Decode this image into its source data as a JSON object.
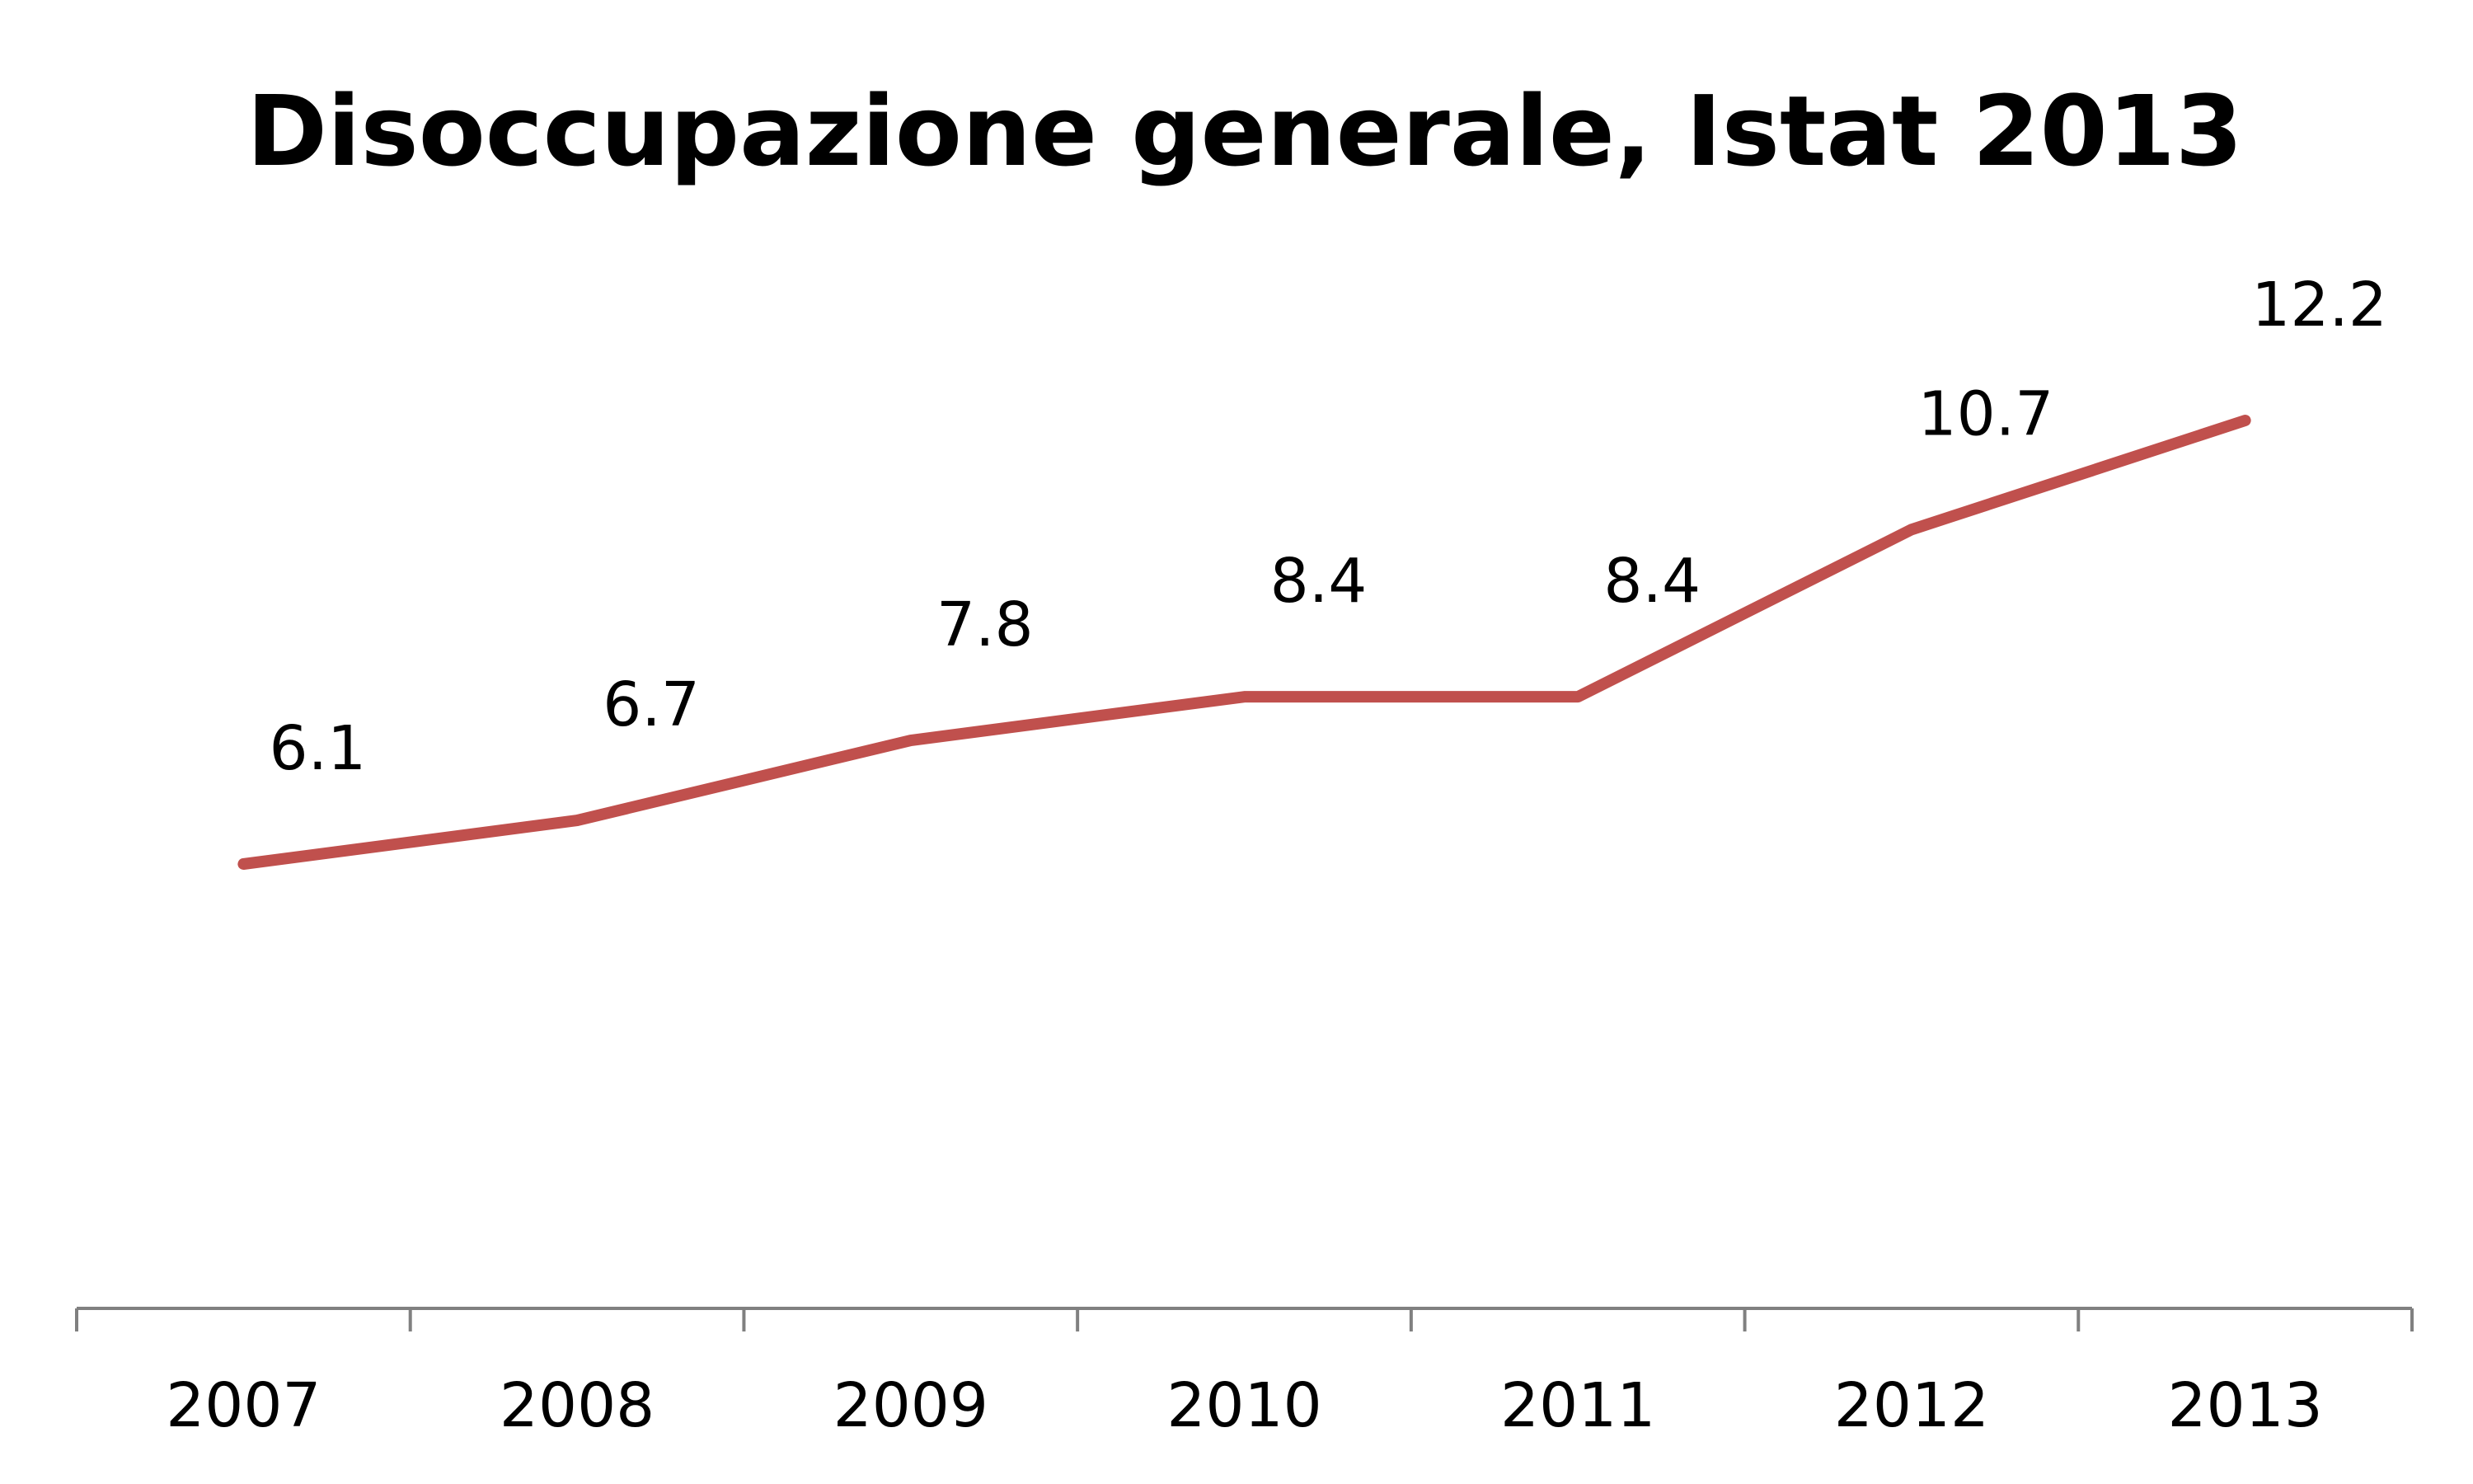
{
  "chart_data": {
    "type": "line",
    "title": "Disoccupazione generale, Istat 2013",
    "xlabel": "",
    "ylabel": "",
    "categories": [
      "2007",
      "2008",
      "2009",
      "2010",
      "2011",
      "2012",
      "2013"
    ],
    "series": [
      {
        "values": [
          6.1,
          6.7,
          7.8,
          8.4,
          8.4,
          10.7,
          12.2
        ],
        "data_labels": [
          "6.1",
          "6.7",
          "7.8",
          "8.4",
          "8.4",
          "10.7",
          "12.2"
        ],
        "color": "#c0504d"
      }
    ],
    "ylim": [
      0,
      14
    ],
    "grid": false,
    "legend": "none",
    "axis_color": "#808080"
  }
}
